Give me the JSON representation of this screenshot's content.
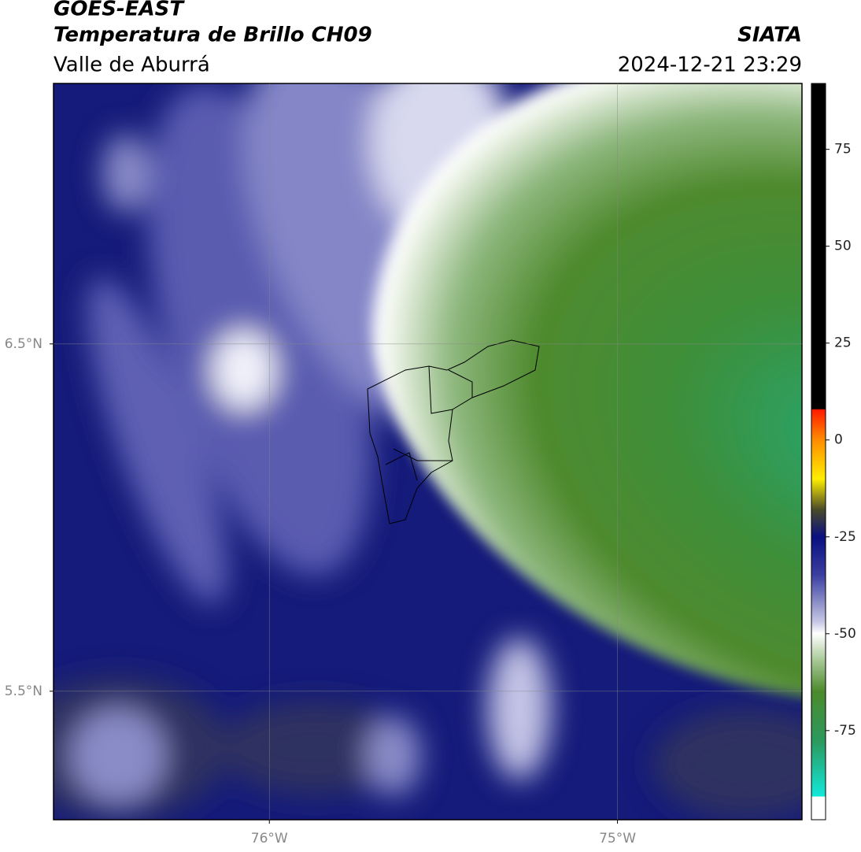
{
  "header": {
    "title": "GOES-EAST",
    "subtitle": "Temperatura de Brillo CH09",
    "region": "Valle de Aburrá",
    "source": "SIATA",
    "datetime": "2024-12-21 23:29"
  },
  "map": {
    "xlim": [
      -76.62,
      -74.47
    ],
    "ylim": [
      5.13,
      7.25
    ],
    "xticks": [
      {
        "value": -76,
        "label": "76°W"
      },
      {
        "value": -75,
        "label": "75°W"
      }
    ],
    "yticks": [
      {
        "value": 6.5,
        "label": "6.5°N"
      },
      {
        "value": 5.5,
        "label": "5.5°N"
      }
    ],
    "grid": true
  },
  "colorbar": {
    "clim": [
      -98,
      92
    ],
    "ticks": [
      75,
      50,
      25,
      0,
      -25,
      -50,
      -75
    ]
  }
}
